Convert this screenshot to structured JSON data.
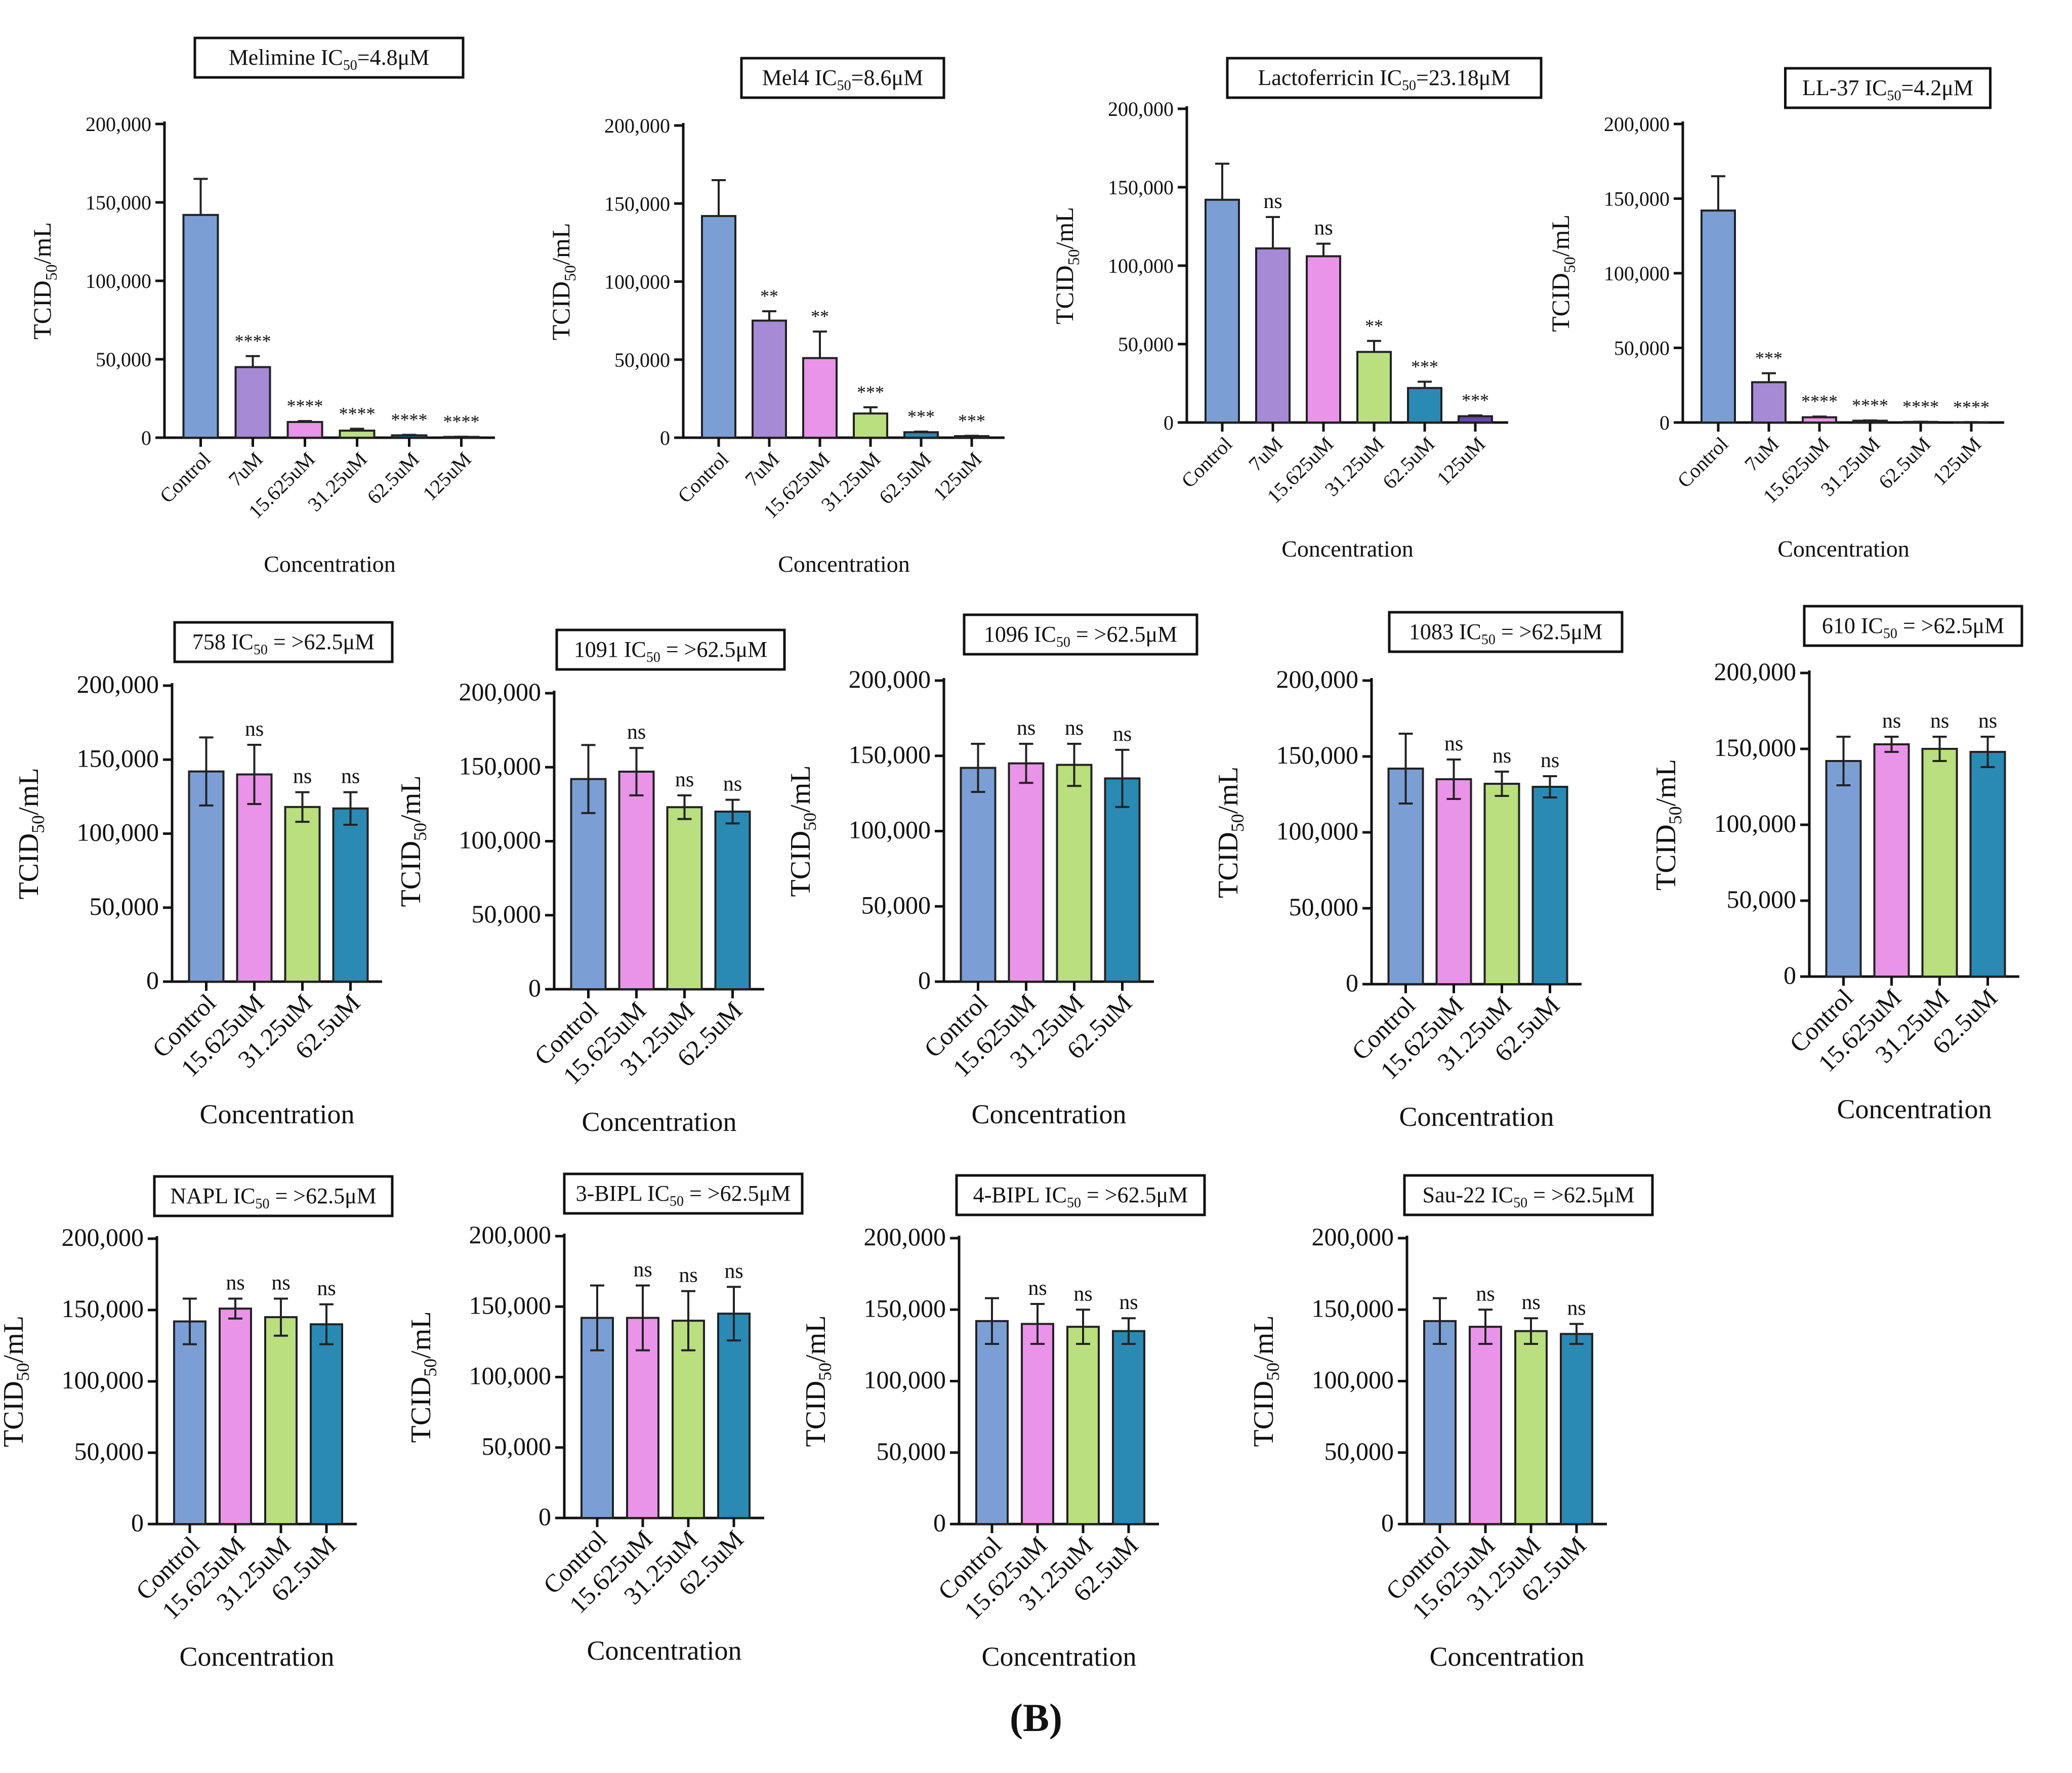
{
  "figure": {
    "panel_label": "(B)",
    "colors": {
      "Control": "#7b9fd4",
      "7uM": "#a68ad6",
      "15.625uM": "#e994e8",
      "31.25uM": "#b9df7e",
      "62.5uM": "#2a8ab4",
      "125uM": "#6a46b0"
    }
  },
  "chart_data": [
    {
      "type": "bar",
      "title_main": "Melimine IC",
      "title_sub": "50",
      "title_tail": "=4.8μM",
      "ylabel_main": "TCID",
      "ylabel_sub": "50",
      "ylabel_tail": "/mL",
      "xlabel": "Concentration",
      "ylim": [
        0,
        200000
      ],
      "yticks": [
        0,
        50000,
        100000,
        150000,
        200000
      ],
      "ytick_labels": [
        "0",
        "50,000",
        "100,000",
        "150,000",
        "200,000"
      ],
      "categories": [
        "Control",
        "7uM",
        "15.625uM",
        "31.25uM",
        "62.5uM",
        "125uM"
      ],
      "values": [
        142000,
        45000,
        10000,
        4500,
        1500,
        500
      ],
      "errors": [
        23000,
        7000,
        600,
        1200,
        300,
        100
      ],
      "significance": [
        "",
        "****",
        "****",
        "****",
        "****",
        "****"
      ]
    },
    {
      "type": "bar",
      "title_main": "Mel4 IC",
      "title_sub": "50",
      "title_tail": "=8.6μM",
      "ylabel_main": "TCID",
      "ylabel_sub": "50",
      "ylabel_tail": "/mL",
      "xlabel": "Concentration",
      "ylim": [
        0,
        200000
      ],
      "yticks": [
        0,
        50000,
        100000,
        150000,
        200000
      ],
      "ytick_labels": [
        "0",
        "50,000",
        "100,000",
        "150,000",
        "200,000"
      ],
      "categories": [
        "Control",
        "7uM",
        "15.625uM",
        "31.25uM",
        "62.5uM",
        "125uM"
      ],
      "values": [
        142000,
        75000,
        51000,
        15500,
        3500,
        1000
      ],
      "errors": [
        23000,
        6000,
        17000,
        4000,
        400,
        200
      ],
      "significance": [
        "",
        "**",
        "**",
        "***",
        "***",
        "***"
      ]
    },
    {
      "type": "bar",
      "title_main": "Lactoferricin IC",
      "title_sub": "50",
      "title_tail": "=23.18μM",
      "ylabel_main": "TCID",
      "ylabel_sub": "50",
      "ylabel_tail": "/mL",
      "xlabel": "Concentration",
      "ylim": [
        0,
        200000
      ],
      "yticks": [
        0,
        50000,
        100000,
        150000,
        200000
      ],
      "ytick_labels": [
        "0",
        "50,000",
        "100,000",
        "150,000",
        "200,000"
      ],
      "categories": [
        "Control",
        "7uM",
        "15.625uM",
        "31.25uM",
        "62.5uM",
        "125uM"
      ],
      "values": [
        142000,
        111000,
        106000,
        45000,
        22000,
        4000
      ],
      "errors": [
        23000,
        20000,
        8000,
        7000,
        4000,
        500
      ],
      "significance": [
        "",
        "ns",
        "ns",
        "**",
        "***",
        "***"
      ]
    },
    {
      "type": "bar",
      "title_main": "LL-37 IC",
      "title_sub": "50",
      "title_tail": "=4.2μM",
      "ylabel_main": "TCID",
      "ylabel_sub": "50",
      "ylabel_tail": "/mL",
      "xlabel": "Concentration",
      "ylim": [
        0,
        200000
      ],
      "yticks": [
        0,
        50000,
        100000,
        150000,
        200000
      ],
      "ytick_labels": [
        "0",
        "50,000",
        "100,000",
        "150,000",
        "200,000"
      ],
      "categories": [
        "Control",
        "7uM",
        "15.625uM",
        "31.25uM",
        "62.5uM",
        "125uM"
      ],
      "values": [
        142000,
        27000,
        3500,
        1200,
        400,
        200
      ],
      "errors": [
        23000,
        6000,
        500,
        200,
        100,
        50
      ],
      "significance": [
        "",
        "***",
        "****",
        "****",
        "****",
        "****"
      ]
    },
    {
      "type": "bar",
      "title_main": "758 IC",
      "title_sub": "50",
      "title_tail": " = >62.5μM",
      "ylabel_main": "TCID",
      "ylabel_sub": "50",
      "ylabel_tail": "/mL",
      "xlabel": "Concentration",
      "ylim": [
        0,
        200000
      ],
      "yticks": [
        0,
        50000,
        100000,
        150000,
        200000
      ],
      "ytick_labels": [
        "0",
        "50,000",
        "100,000",
        "150,000",
        "200,000"
      ],
      "categories": [
        "Control",
        "15.625uM",
        "31.25uM",
        "62.5uM"
      ],
      "values": [
        142000,
        140000,
        118000,
        117000
      ],
      "errors": [
        23000,
        20000,
        10000,
        11000
      ],
      "significance": [
        "",
        "ns",
        "ns",
        "ns"
      ]
    },
    {
      "type": "bar",
      "title_main": "1091 IC",
      "title_sub": "50",
      "title_tail": " = >62.5μM",
      "ylabel_main": "TCID",
      "ylabel_sub": "50",
      "ylabel_tail": "/mL",
      "xlabel": "Concentration",
      "ylim": [
        0,
        200000
      ],
      "yticks": [
        0,
        50000,
        100000,
        150000,
        200000
      ],
      "ytick_labels": [
        "0",
        "50,000",
        "100,000",
        "150,000",
        "200,000"
      ],
      "categories": [
        "Control",
        "15.625uM",
        "31.25uM",
        "62.5uM"
      ],
      "values": [
        142000,
        147000,
        123000,
        120000
      ],
      "errors": [
        23000,
        16000,
        8000,
        8000
      ],
      "significance": [
        "",
        "ns",
        "ns",
        "ns"
      ]
    },
    {
      "type": "bar",
      "title_main": "1096 IC",
      "title_sub": "50",
      "title_tail": " = >62.5μM",
      "ylabel_main": "TCID",
      "ylabel_sub": "50",
      "ylabel_tail": "/mL",
      "xlabel": "Concentration",
      "ylim": [
        0,
        200000
      ],
      "yticks": [
        0,
        50000,
        100000,
        150000,
        200000
      ],
      "ytick_labels": [
        "0",
        "50,000",
        "100,000",
        "150,000",
        "200,000"
      ],
      "categories": [
        "Control",
        "15.625uM",
        "31.25uM",
        "62.5uM"
      ],
      "values": [
        142000,
        145000,
        144000,
        135000
      ],
      "errors": [
        16000,
        13000,
        14000,
        19000
      ],
      "significance": [
        "",
        "ns",
        "ns",
        "ns"
      ]
    },
    {
      "type": "bar",
      "title_main": "1083 IC",
      "title_sub": "50",
      "title_tail": " = >62.5μM",
      "ylabel_main": "TCID",
      "ylabel_sub": "50",
      "ylabel_tail": "/mL",
      "xlabel": "Concentration",
      "ylim": [
        0,
        200000
      ],
      "yticks": [
        0,
        50000,
        100000,
        150000,
        200000
      ],
      "ytick_labels": [
        "0",
        "50,000",
        "100,000",
        "150,000",
        "200,000"
      ],
      "categories": [
        "Control",
        "15.625uM",
        "31.25uM",
        "62.5uM"
      ],
      "values": [
        142000,
        135000,
        132000,
        130000
      ],
      "errors": [
        23000,
        13000,
        8000,
        7000
      ],
      "significance": [
        "",
        "ns",
        "ns",
        "ns"
      ]
    },
    {
      "type": "bar",
      "title_main": "610 IC",
      "title_sub": "50",
      "title_tail": " = >62.5μM",
      "ylabel_main": "TCID",
      "ylabel_sub": "50",
      "ylabel_tail": "/mL",
      "xlabel": "Concentration",
      "ylim": [
        0,
        200000
      ],
      "yticks": [
        0,
        50000,
        100000,
        150000,
        200000
      ],
      "ytick_labels": [
        "0",
        "50,000",
        "100,000",
        "150,000",
        "200,000"
      ],
      "categories": [
        "Control",
        "15.625uM",
        "31.25uM",
        "62.5uM"
      ],
      "values": [
        142000,
        153000,
        150000,
        148000
      ],
      "errors": [
        16000,
        5000,
        8000,
        10000
      ],
      "significance": [
        "",
        "ns",
        "ns",
        "ns"
      ]
    },
    {
      "type": "bar",
      "title_main": "NAPL IC",
      "title_sub": "50",
      "title_tail": " = >62.5μM",
      "ylabel_main": "TCID",
      "ylabel_sub": "50",
      "ylabel_tail": "/mL",
      "xlabel": "Concentration",
      "ylim": [
        0,
        200000
      ],
      "yticks": [
        0,
        50000,
        100000,
        150000,
        200000
      ],
      "ytick_labels": [
        "0",
        "50,000",
        "100,000",
        "150,000",
        "200,000"
      ],
      "categories": [
        "Control",
        "15.625uM",
        "31.25uM",
        "62.5uM"
      ],
      "values": [
        142000,
        151000,
        145000,
        140000
      ],
      "errors": [
        16000,
        7000,
        13000,
        14000
      ],
      "significance": [
        "",
        "ns",
        "ns",
        "ns"
      ]
    },
    {
      "type": "bar",
      "title_main": "3-BIPL IC",
      "title_sub": "50",
      "title_tail": " = >62.5μM",
      "ylabel_main": "TCID",
      "ylabel_sub": "50",
      "ylabel_tail": "/mL",
      "xlabel": "Concentration",
      "ylim": [
        0,
        200000
      ],
      "yticks": [
        0,
        50000,
        100000,
        150000,
        200000
      ],
      "ytick_labels": [
        "0",
        "50,000",
        "100,000",
        "150,000",
        "200,000"
      ],
      "categories": [
        "Control",
        "15.625uM",
        "31.25uM",
        "62.5uM"
      ],
      "values": [
        142000,
        142000,
        140000,
        145000
      ],
      "errors": [
        23000,
        23000,
        21000,
        19000
      ],
      "significance": [
        "",
        "ns",
        "ns",
        "ns"
      ]
    },
    {
      "type": "bar",
      "title_main": "4-BIPL IC",
      "title_sub": "50",
      "title_tail": " = >62.5μM",
      "ylabel_main": "TCID",
      "ylabel_sub": "50",
      "ylabel_tail": "/mL",
      "xlabel": "Concentration",
      "ylim": [
        0,
        200000
      ],
      "yticks": [
        0,
        50000,
        100000,
        150000,
        200000
      ],
      "ytick_labels": [
        "0",
        "50,000",
        "100,000",
        "150,000",
        "200,000"
      ],
      "categories": [
        "Control",
        "15.625uM",
        "31.25uM",
        "62.5uM"
      ],
      "values": [
        142000,
        140000,
        138000,
        135000
      ],
      "errors": [
        16000,
        14000,
        12000,
        9000
      ],
      "significance": [
        "",
        "ns",
        "ns",
        "ns"
      ]
    },
    {
      "type": "bar",
      "title_main": "Sau-22 IC",
      "title_sub": "50",
      "title_tail": " = >62.5μM",
      "ylabel_main": "TCID",
      "ylabel_sub": "50",
      "ylabel_tail": "/mL",
      "xlabel": "Concentration",
      "ylim": [
        0,
        200000
      ],
      "yticks": [
        0,
        50000,
        100000,
        150000,
        200000
      ],
      "ytick_labels": [
        "0",
        "50,000",
        "100,000",
        "150,000",
        "200,000"
      ],
      "categories": [
        "Control",
        "15.625uM",
        "31.25uM",
        "62.5uM"
      ],
      "values": [
        142000,
        138000,
        135000,
        133000
      ],
      "errors": [
        16000,
        12000,
        9000,
        7000
      ],
      "significance": [
        "",
        "ns",
        "ns",
        "ns"
      ]
    }
  ]
}
